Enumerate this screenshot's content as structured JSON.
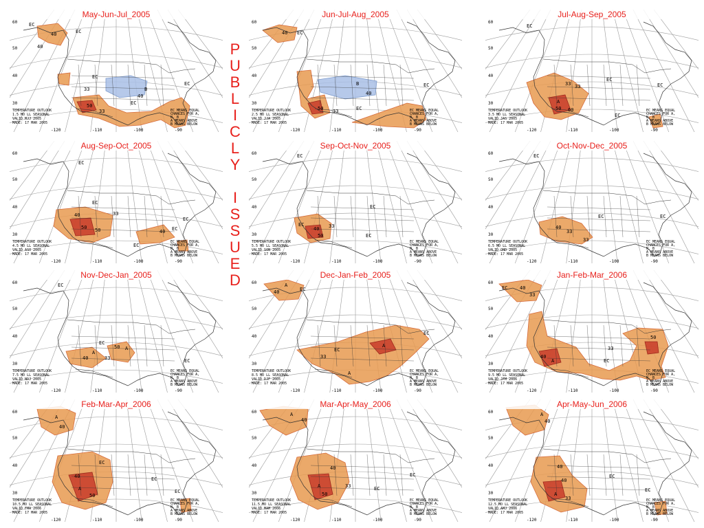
{
  "stamp": {
    "letters": [
      "P",
      "U",
      "B",
      "L",
      "I",
      "C",
      "L",
      "Y",
      " ",
      "I",
      "S",
      "S",
      "U",
      "E",
      "D"
    ]
  },
  "colors": {
    "above_light": "#f0c080",
    "above_mid": "#e89a50",
    "above_dark": "#d66a3a",
    "above_core": "#c83c2a",
    "below": "#a9c0e6",
    "title": "#e8201c"
  },
  "panels": [
    {
      "title": "May-Jun-Jul_2005",
      "lead": "1.5 MO LL SEASONAL",
      "valid": "VALID MJJ 2005",
      "made": "MADE: 17 MAR 2005"
    },
    {
      "title": "Jun-Jul-Aug_2005",
      "lead": "2.5 MO LL SEASONAL",
      "valid": "VALID JJA 2005",
      "made": "MADE: 17 MAR 2005"
    },
    {
      "title": "Jul-Aug-Sep_2005",
      "lead": "3.5 MO LL SEASONAL",
      "valid": "VALID JAS 2005",
      "made": "MADE: 17 MAR 2005"
    },
    {
      "title": "Aug-Sep-Oct_2005",
      "lead": "4.5 MO LL SEASONAL",
      "valid": "VALID ASO 2005",
      "made": "MADE: 17 MAR 2005"
    },
    {
      "title": "Sep-Oct-Nov_2005",
      "lead": "5.5 MO LL SEASONAL",
      "valid": "VALID SON 2005",
      "made": "MADE: 17 MAR 2005"
    },
    {
      "title": "Oct-Nov-Dec_2005",
      "lead": "6.5 MO LL SEASONAL",
      "valid": "VALID OND 2005",
      "made": "MADE: 17 MAR 2005"
    },
    {
      "title": "Nov-Dec-Jan_2005",
      "lead": "7.5 MO LL SEASONAL",
      "valid": "VALID NDJ 2005",
      "made": "MADE: 17 MAR 2005"
    },
    {
      "title": "Dec-Jan-Feb_2005",
      "lead": "8.5 MO LL SEASONAL",
      "valid": "VALID DJF 2005",
      "made": "MADE: 17 MAR 2005"
    },
    {
      "title": "Jan-Feb-Mar_2006",
      "lead": "9.5 MO LL SEASONAL",
      "valid": "VALID JFM 2006",
      "made": "MADE: 17 MAR 2005"
    },
    {
      "title": "Feb-Mar-Apr_2006",
      "lead": "10.5 MO LL SEASONAL",
      "valid": "VALID FMA 2006",
      "made": "MADE: 17 MAR 2005"
    },
    {
      "title": "Mar-Apr-May_2006",
      "lead": "11.5 MO LL SEASONAL",
      "valid": "VALID MAM 2006",
      "made": "MADE: 17 MAR 2005"
    },
    {
      "title": "Apr-May-Jun_2006",
      "lead": "12.5 MO LL SEASONAL",
      "valid": "VALID AMJ 2006",
      "made": "MADE: 17 MAR 2005"
    }
  ],
  "common": {
    "outlook_label": "TEMPERATURE OUTLOOK",
    "legend_lines": [
      "EC MEANS EQUAL",
      "CHANCES FOR A,",
      "N, B",
      "A MEANS ABOVE",
      "B MEANS BELOW"
    ],
    "lat_labels": [
      "60",
      "50",
      "40",
      "30"
    ],
    "lon_labels": [
      "-120",
      "-110",
      "-100",
      "-90"
    ],
    "ec": "EC",
    "above": "A",
    "below": "B",
    "prob_33": "33",
    "prob_40": "40",
    "prob_50": "50"
  }
}
